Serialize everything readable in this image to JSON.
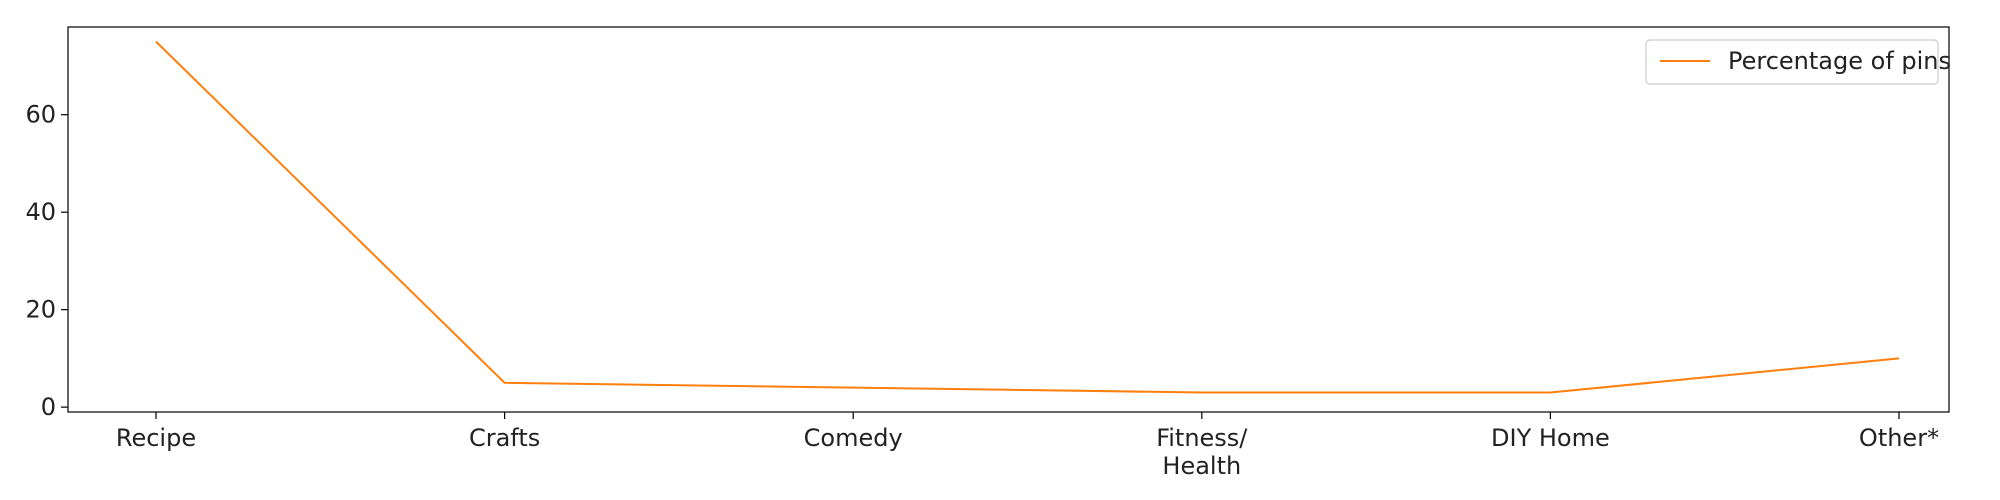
{
  "chart_data": {
    "type": "line",
    "categories": [
      [
        "Recipe"
      ],
      [
        "Crafts"
      ],
      [
        "Comedy"
      ],
      [
        "Fitness/",
        "Health"
      ],
      [
        "DIY Home"
      ],
      [
        "Other*"
      ]
    ],
    "series": [
      {
        "name": "Percentage of pins",
        "values": [
          75,
          5,
          4,
          3,
          3,
          10
        ],
        "color": "#ff7f0e"
      }
    ],
    "y_ticks": [
      "0",
      "20",
      "40",
      "60"
    ],
    "ylim": [
      -1,
      78
    ],
    "legend": {
      "position": "top-right",
      "label": "Percentage of pins"
    },
    "grid": false
  }
}
